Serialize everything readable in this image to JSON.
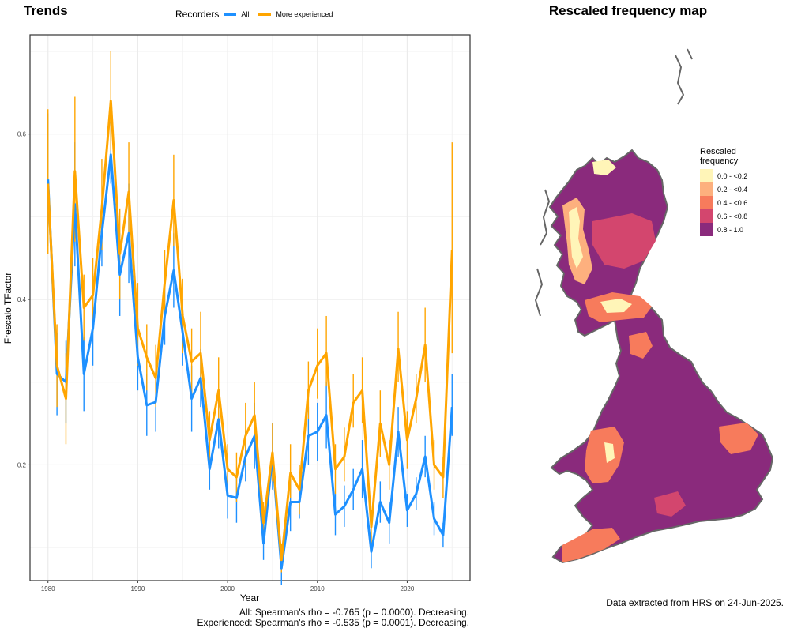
{
  "trends_title": "Trends",
  "map_title": "Rescaled frequency map",
  "legend": {
    "title": "Recorders",
    "entries": [
      {
        "label": "All",
        "color": "#1e90ff"
      },
      {
        "label": "More experienced",
        "color": "#ffa500"
      }
    ]
  },
  "stats": {
    "all": "All: Spearman's rho = -0.765 (p = 0.0000). Decreasing.",
    "experienced": "Experienced: Spearman's rho = -0.535 (p = 0.0001). Decreasing."
  },
  "credit": "Data extracted from HRS on 24-Jun-2025.",
  "map_legend": {
    "title": "Rescaled frequency",
    "bins": [
      {
        "label": "0.0 - <0.2",
        "color": "#fff5b8"
      },
      {
        "label": "0.2 - <0.4",
        "color": "#fdb07e"
      },
      {
        "label": "0.4 - <0.6",
        "color": "#f77b5c"
      },
      {
        "label": "0.6 - <0.8",
        "color": "#d3466e"
      },
      {
        "label": "0.8 - 1.0",
        "color": "#8a2a7c"
      }
    ]
  },
  "chart_data": {
    "type": "line",
    "xlabel": "Year",
    "ylabel": "Frescalo TFactor",
    "xlim": [
      1978,
      2027
    ],
    "ylim": [
      0.06,
      0.72
    ],
    "xticks": [
      1980,
      1990,
      2000,
      2010,
      2020
    ],
    "yticks": [
      0.2,
      0.4,
      0.6
    ],
    "ytick_labels": [
      "0.2",
      "0.4",
      "0.6"
    ],
    "grid": true,
    "x": [
      1980,
      1981,
      1982,
      1983,
      1984,
      1985,
      1986,
      1987,
      1988,
      1989,
      1990,
      1991,
      1992,
      1993,
      1994,
      1995,
      1996,
      1997,
      1998,
      1999,
      2000,
      2001,
      2002,
      2003,
      2004,
      2005,
      2006,
      2007,
      2008,
      2009,
      2010,
      2011,
      2012,
      2013,
      2014,
      2015,
      2016,
      2017,
      2018,
      2019,
      2020,
      2021,
      2022,
      2023,
      2024,
      2025
    ],
    "series": [
      {
        "name": "All",
        "color": "#1e90ff",
        "values": [
          0.545,
          0.31,
          0.3,
          0.515,
          0.31,
          0.365,
          0.48,
          0.575,
          0.43,
          0.48,
          0.33,
          0.272,
          0.276,
          0.38,
          0.435,
          0.36,
          0.28,
          0.305,
          0.195,
          0.255,
          0.163,
          0.16,
          0.21,
          0.235,
          0.105,
          0.21,
          0.075,
          0.155,
          0.155,
          0.235,
          0.24,
          0.26,
          0.14,
          0.15,
          0.17,
          0.195,
          0.095,
          0.155,
          0.13,
          0.24,
          0.145,
          0.165,
          0.21,
          0.135,
          0.115,
          0.27
        ],
        "err_low": [
          0.465,
          0.26,
          0.25,
          0.44,
          0.265,
          0.32,
          0.44,
          0.54,
          0.38,
          0.42,
          0.29,
          0.235,
          0.24,
          0.345,
          0.39,
          0.32,
          0.24,
          0.27,
          0.17,
          0.22,
          0.135,
          0.13,
          0.18,
          0.195,
          0.085,
          0.17,
          0.055,
          0.12,
          0.135,
          0.2,
          0.205,
          0.22,
          0.115,
          0.125,
          0.145,
          0.16,
          0.075,
          0.13,
          0.105,
          0.21,
          0.125,
          0.145,
          0.185,
          0.115,
          0.1,
          0.235
        ],
        "err_high": [
          0.625,
          0.36,
          0.35,
          0.59,
          0.355,
          0.41,
          0.52,
          0.615,
          0.48,
          0.54,
          0.37,
          0.31,
          0.31,
          0.415,
          0.48,
          0.4,
          0.32,
          0.34,
          0.22,
          0.29,
          0.19,
          0.19,
          0.24,
          0.275,
          0.125,
          0.25,
          0.095,
          0.19,
          0.175,
          0.27,
          0.275,
          0.3,
          0.165,
          0.175,
          0.195,
          0.23,
          0.115,
          0.18,
          0.155,
          0.27,
          0.165,
          0.185,
          0.235,
          0.155,
          0.13,
          0.31
        ]
      },
      {
        "name": "More experienced",
        "color": "#ffa500",
        "values": [
          0.54,
          0.32,
          0.28,
          0.555,
          0.39,
          0.405,
          0.51,
          0.64,
          0.455,
          0.53,
          0.365,
          0.33,
          0.305,
          0.42,
          0.52,
          0.38,
          0.325,
          0.335,
          0.23,
          0.29,
          0.195,
          0.185,
          0.235,
          0.26,
          0.13,
          0.215,
          0.085,
          0.19,
          0.17,
          0.29,
          0.32,
          0.335,
          0.195,
          0.21,
          0.275,
          0.29,
          0.125,
          0.25,
          0.2,
          0.34,
          0.23,
          0.28,
          0.345,
          0.2,
          0.185,
          0.46
        ],
        "err_low": [
          0.455,
          0.27,
          0.225,
          0.47,
          0.35,
          0.36,
          0.46,
          0.58,
          0.4,
          0.47,
          0.32,
          0.29,
          0.27,
          0.38,
          0.465,
          0.335,
          0.285,
          0.29,
          0.2,
          0.255,
          0.165,
          0.155,
          0.2,
          0.225,
          0.105,
          0.18,
          0.07,
          0.16,
          0.14,
          0.255,
          0.28,
          0.295,
          0.165,
          0.18,
          0.245,
          0.25,
          0.105,
          0.21,
          0.17,
          0.3,
          0.195,
          0.25,
          0.3,
          0.17,
          0.16,
          0.335
        ],
        "err_high": [
          0.63,
          0.37,
          0.335,
          0.645,
          0.43,
          0.45,
          0.57,
          0.7,
          0.51,
          0.59,
          0.42,
          0.37,
          0.345,
          0.46,
          0.575,
          0.425,
          0.365,
          0.385,
          0.265,
          0.33,
          0.225,
          0.215,
          0.275,
          0.3,
          0.155,
          0.25,
          0.105,
          0.225,
          0.2,
          0.325,
          0.365,
          0.38,
          0.225,
          0.245,
          0.31,
          0.33,
          0.145,
          0.29,
          0.23,
          0.385,
          0.265,
          0.31,
          0.39,
          0.23,
          0.21,
          0.59
        ]
      }
    ]
  }
}
